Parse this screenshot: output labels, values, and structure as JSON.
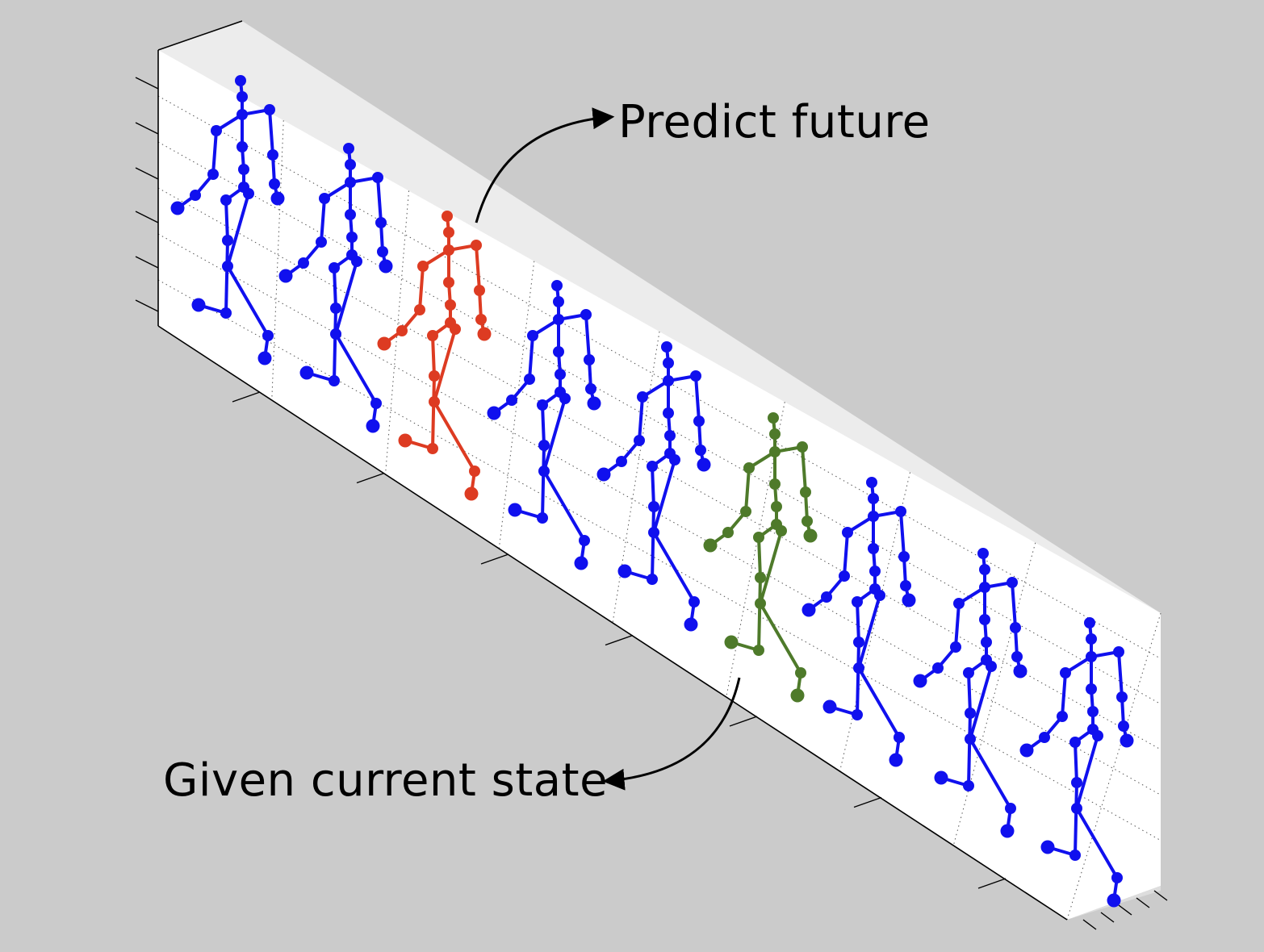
{
  "annotations": {
    "predict": "Predict future",
    "given": "Given current state"
  },
  "colors": {
    "background": "#cbcbcb",
    "panel": "#ffffff",
    "grid": "#555555",
    "observed": "#1010ee",
    "predicted": "#dd3b22",
    "current": "#4e7a2a"
  },
  "figures": [
    {
      "role": "observed"
    },
    {
      "role": "observed"
    },
    {
      "role": "predicted"
    },
    {
      "role": "observed"
    },
    {
      "role": "observed"
    },
    {
      "role": "current"
    },
    {
      "role": "observed"
    },
    {
      "role": "observed"
    },
    {
      "role": "observed"
    }
  ]
}
